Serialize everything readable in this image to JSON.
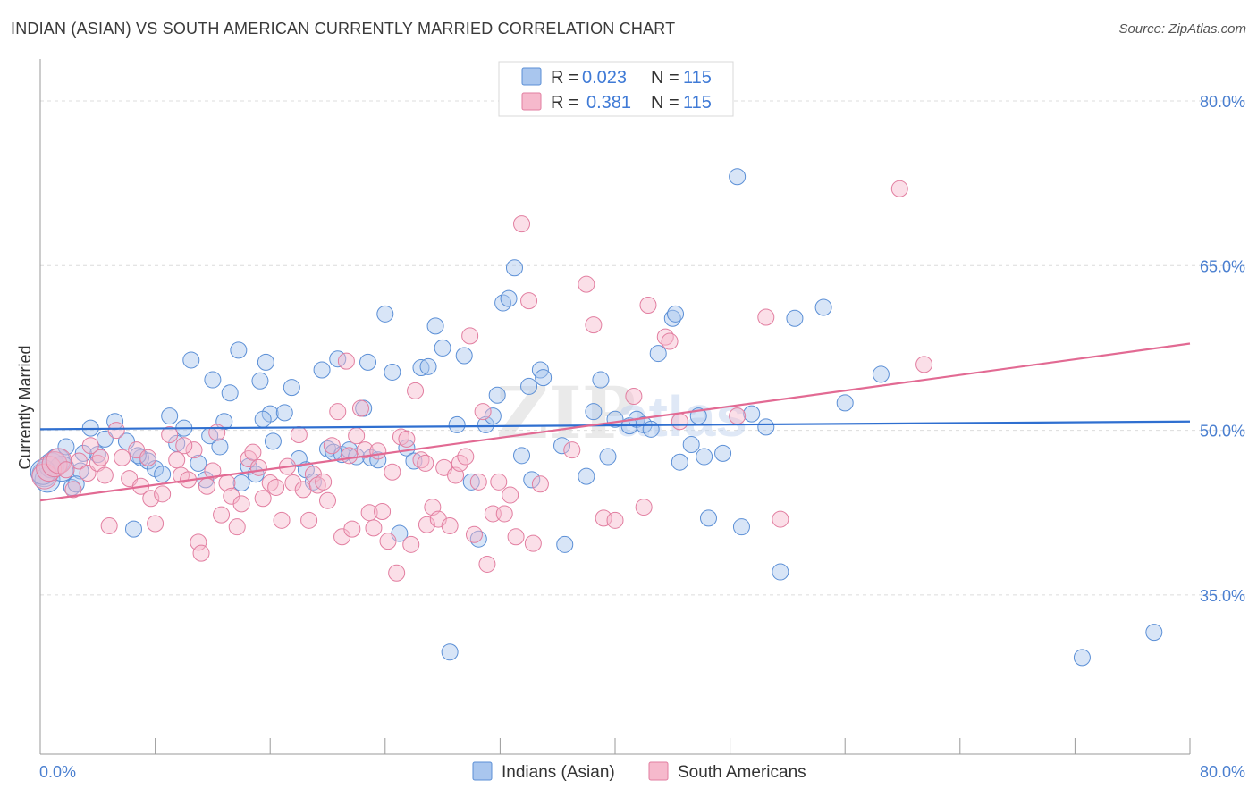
{
  "title": "INDIAN (ASIAN) VS SOUTH AMERICAN CURRENTLY MARRIED CORRELATION CHART",
  "source": "Source: ZipAtlas.com",
  "watermark": {
    "part1": "ZIP",
    "part2": "atlas"
  },
  "legend": {
    "r_label": "R =",
    "n_label": "N =",
    "rows": [
      {
        "r": "0.023",
        "n": "115"
      },
      {
        "r": "0.381",
        "n": "115"
      }
    ]
  },
  "colors": {
    "blue_fill": "#a9c6ee",
    "blue_stroke": "#5b8fd6",
    "blue_line": "#2f6fd0",
    "pink_fill": "#f6b9cc",
    "pink_stroke": "#e27ea0",
    "pink_line": "#e26a93"
  },
  "chart_data": {
    "type": "scatter",
    "title": "INDIAN (ASIAN) VS SOUTH AMERICAN CURRENTLY MARRIED CORRELATION CHART",
    "xlabel": "",
    "ylabel": "Currently Married",
    "xlim": [
      0,
      80
    ],
    "ylim": [
      20.5,
      83.5
    ],
    "x_tick_labels": [
      "0.0%",
      "80.0%"
    ],
    "y_ticks": [
      35,
      50,
      65,
      80
    ],
    "y_tick_labels": [
      "35.0%",
      "50.0%",
      "65.0%",
      "80.0%"
    ],
    "grid": true,
    "legend_position": "top-center",
    "series": [
      {
        "name": "Indians (Asian)",
        "color": "#a9c6ee",
        "r": 0.023,
        "n": 115,
        "trend": [
          [
            0,
            50.1
          ],
          [
            80,
            50.8
          ]
        ],
        "points": [
          [
            0.3,
            46.0
          ],
          [
            0.5,
            45.5
          ],
          [
            0.8,
            46.8
          ],
          [
            1.2,
            47.2
          ],
          [
            1.5,
            46.5
          ],
          [
            1.8,
            48.5
          ],
          [
            2.2,
            44.8
          ],
          [
            2.8,
            46.3
          ],
          [
            3.5,
            50.2
          ],
          [
            4.0,
            47.8
          ],
          [
            4.5,
            49.2
          ],
          [
            5.2,
            50.8
          ],
          [
            6.0,
            49.0
          ],
          [
            6.5,
            41.0
          ],
          [
            7.0,
            47.5
          ],
          [
            7.5,
            47.2
          ],
          [
            8.0,
            46.5
          ],
          [
            8.5,
            46.0
          ],
          [
            9.0,
            51.3
          ],
          [
            9.5,
            48.8
          ],
          [
            10.0,
            50.2
          ],
          [
            10.5,
            56.4
          ],
          [
            11.0,
            47.0
          ],
          [
            11.5,
            45.5
          ],
          [
            12.0,
            54.6
          ],
          [
            12.5,
            48.5
          ],
          [
            12.8,
            50.8
          ],
          [
            13.2,
            53.4
          ],
          [
            13.8,
            57.3
          ],
          [
            14.0,
            45.2
          ],
          [
            14.5,
            46.7
          ],
          [
            15.0,
            46.0
          ],
          [
            15.3,
            54.5
          ],
          [
            15.7,
            56.2
          ],
          [
            16.0,
            51.5
          ],
          [
            16.2,
            49.0
          ],
          [
            17.0,
            51.6
          ],
          [
            17.5,
            53.9
          ],
          [
            18.0,
            47.4
          ],
          [
            18.5,
            46.4
          ],
          [
            19.0,
            45.3
          ],
          [
            19.6,
            55.5
          ],
          [
            20.0,
            48.3
          ],
          [
            20.4,
            48.0
          ],
          [
            20.7,
            56.5
          ],
          [
            21.0,
            47.8
          ],
          [
            21.5,
            48.2
          ],
          [
            22.0,
            47.6
          ],
          [
            22.5,
            52.0
          ],
          [
            22.8,
            56.2
          ],
          [
            23.0,
            47.5
          ],
          [
            23.5,
            47.3
          ],
          [
            24.0,
            60.6
          ],
          [
            24.5,
            55.3
          ],
          [
            25.0,
            40.6
          ],
          [
            25.5,
            48.4
          ],
          [
            26.0,
            47.2
          ],
          [
            26.5,
            55.7
          ],
          [
            27.0,
            55.8
          ],
          [
            27.5,
            59.5
          ],
          [
            28.0,
            57.5
          ],
          [
            28.5,
            29.8
          ],
          [
            29.0,
            50.5
          ],
          [
            29.5,
            56.8
          ],
          [
            30.0,
            45.3
          ],
          [
            30.5,
            40.1
          ],
          [
            31.0,
            50.5
          ],
          [
            31.5,
            51.3
          ],
          [
            31.8,
            53.2
          ],
          [
            32.2,
            61.6
          ],
          [
            32.6,
            62.0
          ],
          [
            33.0,
            64.8
          ],
          [
            33.5,
            47.7
          ],
          [
            34.0,
            54.0
          ],
          [
            34.2,
            45.5
          ],
          [
            34.8,
            55.5
          ],
          [
            35.0,
            54.8
          ],
          [
            36.3,
            48.6
          ],
          [
            36.5,
            39.6
          ],
          [
            38.0,
            45.8
          ],
          [
            38.5,
            51.7
          ],
          [
            39.0,
            54.6
          ],
          [
            39.5,
            47.6
          ],
          [
            40.0,
            51.0
          ],
          [
            41.0,
            50.4
          ],
          [
            41.5,
            51.0
          ],
          [
            42.0,
            50.5
          ],
          [
            42.5,
            50.1
          ],
          [
            43.0,
            57.0
          ],
          [
            44.0,
            60.2
          ],
          [
            44.2,
            60.6
          ],
          [
            44.5,
            47.1
          ],
          [
            45.3,
            48.7
          ],
          [
            45.8,
            51.3
          ],
          [
            46.2,
            47.6
          ],
          [
            46.5,
            42.0
          ],
          [
            47.5,
            47.9
          ],
          [
            48.5,
            73.1
          ],
          [
            48.8,
            41.2
          ],
          [
            49.5,
            51.5
          ],
          [
            50.5,
            50.3
          ],
          [
            51.5,
            37.1
          ],
          [
            52.5,
            60.2
          ],
          [
            54.5,
            61.2
          ],
          [
            56.0,
            52.5
          ],
          [
            58.5,
            55.1
          ],
          [
            72.5,
            29.3
          ],
          [
            77.5,
            31.6
          ],
          [
            0.2,
            46.2
          ],
          [
            1.0,
            46.9
          ],
          [
            2.5,
            45.1
          ],
          [
            3.0,
            47.9
          ],
          [
            6.8,
            47.7
          ],
          [
            11.8,
            49.5
          ],
          [
            15.5,
            51.0
          ]
        ]
      },
      {
        "name": "South Americans",
        "color": "#f6b9cc",
        "r": 0.381,
        "n": 115,
        "trend": [
          [
            0,
            43.6
          ],
          [
            80,
            57.9
          ]
        ],
        "points": [
          [
            0.3,
            45.8
          ],
          [
            0.6,
            46.5
          ],
          [
            1.0,
            46.9
          ],
          [
            1.3,
            47.2
          ],
          [
            1.8,
            46.4
          ],
          [
            2.3,
            44.6
          ],
          [
            2.7,
            47.2
          ],
          [
            3.3,
            46.1
          ],
          [
            3.5,
            48.6
          ],
          [
            4.0,
            47.0
          ],
          [
            4.5,
            45.9
          ],
          [
            4.8,
            41.3
          ],
          [
            5.3,
            50.0
          ],
          [
            5.7,
            47.5
          ],
          [
            6.2,
            45.6
          ],
          [
            6.7,
            48.2
          ],
          [
            7.0,
            44.9
          ],
          [
            7.5,
            47.5
          ],
          [
            7.7,
            43.8
          ],
          [
            8.0,
            41.5
          ],
          [
            8.5,
            44.2
          ],
          [
            9.0,
            49.6
          ],
          [
            9.5,
            47.3
          ],
          [
            9.8,
            45.9
          ],
          [
            10.3,
            45.5
          ],
          [
            10.7,
            48.2
          ],
          [
            11.0,
            39.8
          ],
          [
            11.2,
            38.8
          ],
          [
            11.6,
            44.9
          ],
          [
            12.0,
            46.3
          ],
          [
            12.3,
            49.8
          ],
          [
            12.6,
            42.3
          ],
          [
            13.0,
            45.2
          ],
          [
            13.3,
            44.0
          ],
          [
            13.7,
            41.2
          ],
          [
            14.0,
            43.3
          ],
          [
            14.5,
            47.4
          ],
          [
            14.8,
            48.0
          ],
          [
            15.2,
            46.6
          ],
          [
            15.5,
            43.8
          ],
          [
            16.0,
            45.2
          ],
          [
            16.4,
            44.8
          ],
          [
            16.8,
            41.8
          ],
          [
            17.2,
            46.7
          ],
          [
            17.6,
            45.2
          ],
          [
            18.0,
            49.6
          ],
          [
            18.3,
            44.6
          ],
          [
            18.7,
            41.8
          ],
          [
            19.0,
            46.0
          ],
          [
            19.3,
            45.0
          ],
          [
            19.7,
            45.3
          ],
          [
            20.0,
            43.6
          ],
          [
            20.3,
            48.6
          ],
          [
            20.7,
            51.7
          ],
          [
            21.0,
            40.3
          ],
          [
            21.3,
            56.3
          ],
          [
            21.7,
            41.0
          ],
          [
            22.0,
            49.5
          ],
          [
            22.3,
            52.0
          ],
          [
            22.6,
            48.2
          ],
          [
            22.9,
            42.5
          ],
          [
            23.2,
            41.1
          ],
          [
            23.5,
            48.1
          ],
          [
            23.8,
            42.6
          ],
          [
            24.2,
            39.9
          ],
          [
            24.5,
            46.2
          ],
          [
            24.8,
            37.0
          ],
          [
            25.1,
            49.4
          ],
          [
            25.5,
            49.2
          ],
          [
            25.8,
            39.6
          ],
          [
            26.1,
            53.6
          ],
          [
            26.5,
            47.3
          ],
          [
            26.9,
            41.4
          ],
          [
            27.3,
            43.0
          ],
          [
            27.7,
            41.9
          ],
          [
            28.1,
            46.6
          ],
          [
            28.5,
            41.3
          ],
          [
            28.9,
            45.9
          ],
          [
            29.2,
            47.0
          ],
          [
            29.6,
            47.6
          ],
          [
            29.9,
            58.6
          ],
          [
            30.2,
            40.5
          ],
          [
            30.5,
            45.3
          ],
          [
            30.8,
            51.7
          ],
          [
            31.1,
            37.8
          ],
          [
            31.5,
            42.4
          ],
          [
            31.9,
            45.3
          ],
          [
            32.3,
            42.4
          ],
          [
            32.7,
            44.1
          ],
          [
            33.1,
            40.3
          ],
          [
            33.5,
            68.8
          ],
          [
            34.0,
            61.8
          ],
          [
            34.3,
            39.7
          ],
          [
            34.8,
            45.1
          ],
          [
            38.0,
            63.3
          ],
          [
            38.5,
            59.6
          ],
          [
            39.2,
            42.0
          ],
          [
            40.0,
            41.8
          ],
          [
            41.3,
            53.1
          ],
          [
            42.0,
            43.0
          ],
          [
            42.3,
            61.4
          ],
          [
            43.5,
            58.5
          ],
          [
            43.8,
            58.1
          ],
          [
            44.5,
            50.8
          ],
          [
            48.5,
            51.3
          ],
          [
            50.5,
            60.3
          ],
          [
            51.5,
            41.9
          ],
          [
            59.8,
            72.0
          ],
          [
            61.5,
            56.0
          ],
          [
            37.0,
            48.2
          ],
          [
            21.5,
            47.7
          ],
          [
            4.2,
            47.5
          ],
          [
            10.0,
            48.6
          ],
          [
            26.8,
            47.0
          ]
        ]
      }
    ]
  },
  "bottom_legend": [
    "Indians (Asian)",
    "South Americans"
  ]
}
